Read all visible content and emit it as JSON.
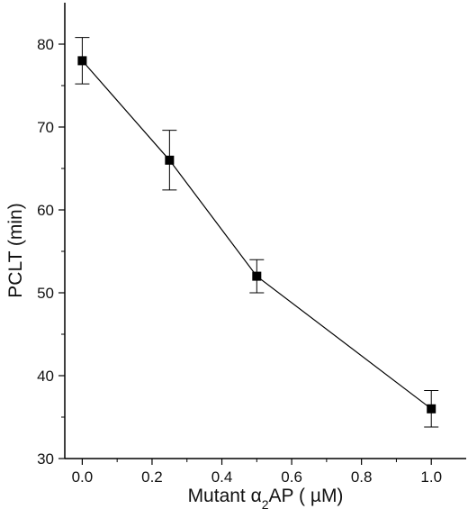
{
  "chart_data": {
    "type": "line",
    "xlabel": "Mutant α2AP ( µM)",
    "xlabel_parts": {
      "prefix": "Mutant ",
      "symbol": "α",
      "subscript": "2",
      "suffix": "AP ( µM)"
    },
    "ylabel": "PCLT (min)",
    "xlim": [
      -0.05,
      1.1
    ],
    "ylim": [
      30,
      85
    ],
    "xticks": [
      0.0,
      0.2,
      0.4,
      0.6,
      0.8,
      1.0
    ],
    "xtick_labels": [
      "0.0",
      "0.2",
      "0.4",
      "0.6",
      "0.8",
      "1.0"
    ],
    "yticks": [
      30,
      40,
      50,
      60,
      70,
      80
    ],
    "ytick_labels": [
      "30",
      "40",
      "50",
      "60",
      "70",
      "80"
    ],
    "grid": false,
    "series": [
      {
        "x": [
          0.0,
          0.25,
          0.5,
          1.0
        ],
        "y": [
          78,
          66,
          52,
          36
        ],
        "error": [
          2.8,
          3.6,
          2.0,
          2.2
        ],
        "marker": "square",
        "color": "#000000"
      }
    ]
  }
}
